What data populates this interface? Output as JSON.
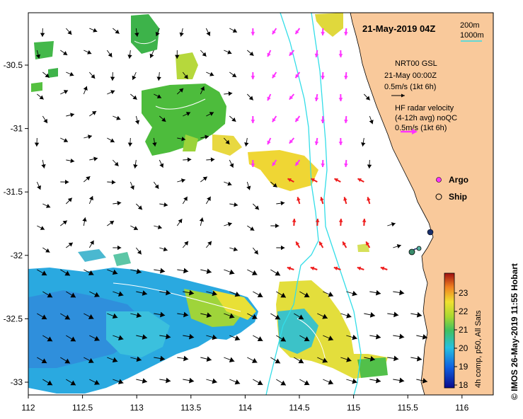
{
  "map": {
    "title": "21-May-2019 04Z",
    "scale_bar": {
      "top": "200m",
      "bottom": "1000m"
    },
    "x_ticks": [
      "112",
      "112.5",
      "113",
      "113.5",
      "114",
      "114.5",
      "115",
      "115.5",
      "116"
    ],
    "y_ticks": [
      "-30.5",
      "-31",
      "-31.5",
      "-32",
      "-32.5",
      "-33"
    ],
    "model_legend": {
      "line1": "NRT00 GSL",
      "line2": "21-May 00:00Z",
      "line3": "0.5m/s (1kt 6h)"
    },
    "radar_legend": {
      "line1": "HF radar velocity",
      "line2": "(4-12h avg) noQC",
      "line3": "0.5m/s (1kt 6h)"
    },
    "markers": {
      "argo_label": "Argo",
      "ship_label": "Ship"
    },
    "colorbar": {
      "ticks": [
        "23",
        "22",
        "21",
        "20",
        "19",
        "18"
      ],
      "label": "4h comp, p50, All Sats"
    },
    "credit": "© IMOS 26-May-2019 11:55 Hobart",
    "colors": {
      "land": "#f9c99b",
      "isobath": "#33dde8",
      "argo": "#ff33ff",
      "radar": "#ee1c1c",
      "ship": "#1a2f6b"
    }
  }
}
